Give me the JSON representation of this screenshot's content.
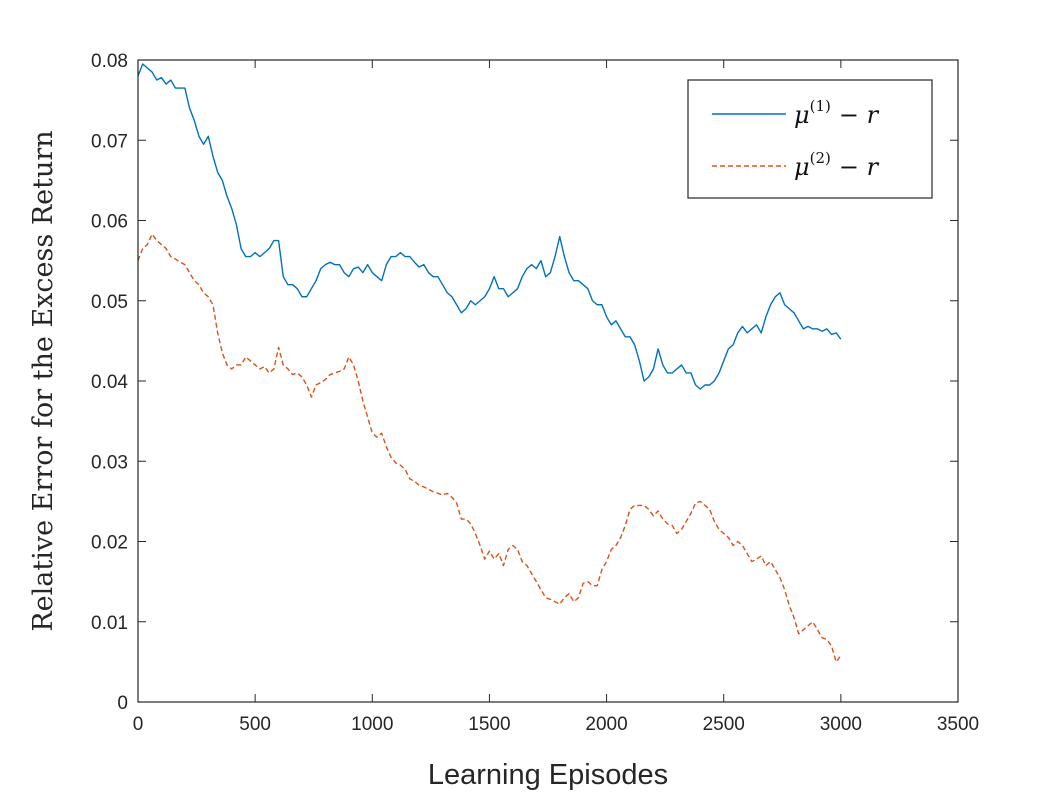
{
  "chart_data": {
    "type": "line",
    "title": "",
    "xlabel": "Learning Episodes",
    "ylabel": "Relative Error for the Excess Return",
    "xlim": [
      0,
      3500
    ],
    "ylim": [
      0,
      0.08
    ],
    "xticks": [
      0,
      500,
      1000,
      1500,
      2000,
      2500,
      3000,
      3500
    ],
    "yticks": [
      0,
      0.01,
      0.02,
      0.03,
      0.04,
      0.05,
      0.06,
      0.07,
      0.08
    ],
    "xtick_labels": [
      "0",
      "500",
      "1000",
      "1500",
      "2000",
      "2500",
      "3000",
      "3500"
    ],
    "ytick_labels": [
      "0",
      "0.01",
      "0.02",
      "0.03",
      "0.04",
      "0.05",
      "0.06",
      "0.07",
      "0.08"
    ],
    "grid": false,
    "legend_position": "top-right",
    "series": [
      {
        "name": "μ(1) − r",
        "legend": {
          "base": "μ",
          "sup": "(1)",
          "rest": "− r"
        },
        "color": "#0072BD",
        "style": "solid",
        "points": [
          [
            0,
            0.078
          ],
          [
            20,
            0.0795
          ],
          [
            40,
            0.079
          ],
          [
            60,
            0.0785
          ],
          [
            80,
            0.0775
          ],
          [
            100,
            0.0778
          ],
          [
            120,
            0.077
          ],
          [
            140,
            0.0775
          ],
          [
            160,
            0.0765
          ],
          [
            180,
            0.0765
          ],
          [
            200,
            0.0765
          ],
          [
            220,
            0.074
          ],
          [
            240,
            0.0725
          ],
          [
            260,
            0.0705
          ],
          [
            280,
            0.0695
          ],
          [
            300,
            0.0705
          ],
          [
            320,
            0.068
          ],
          [
            340,
            0.066
          ],
          [
            360,
            0.065
          ],
          [
            380,
            0.063
          ],
          [
            400,
            0.0615
          ],
          [
            420,
            0.0595
          ],
          [
            440,
            0.0565
          ],
          [
            460,
            0.0555
          ],
          [
            480,
            0.0555
          ],
          [
            500,
            0.056
          ],
          [
            520,
            0.0555
          ],
          [
            540,
            0.056
          ],
          [
            560,
            0.0565
          ],
          [
            580,
            0.0575
          ],
          [
            600,
            0.0575
          ],
          [
            620,
            0.053
          ],
          [
            640,
            0.052
          ],
          [
            660,
            0.052
          ],
          [
            680,
            0.0515
          ],
          [
            700,
            0.0505
          ],
          [
            720,
            0.0505
          ],
          [
            740,
            0.0515
          ],
          [
            760,
            0.0525
          ],
          [
            780,
            0.054
          ],
          [
            800,
            0.0545
          ],
          [
            820,
            0.0548
          ],
          [
            840,
            0.0545
          ],
          [
            860,
            0.0545
          ],
          [
            880,
            0.0535
          ],
          [
            900,
            0.053
          ],
          [
            920,
            0.054
          ],
          [
            940,
            0.0542
          ],
          [
            960,
            0.0535
          ],
          [
            980,
            0.0545
          ],
          [
            1000,
            0.0535
          ],
          [
            1020,
            0.053
          ],
          [
            1040,
            0.0525
          ],
          [
            1060,
            0.0545
          ],
          [
            1080,
            0.0555
          ],
          [
            1100,
            0.0555
          ],
          [
            1120,
            0.056
          ],
          [
            1140,
            0.0555
          ],
          [
            1160,
            0.0555
          ],
          [
            1180,
            0.0548
          ],
          [
            1200,
            0.0542
          ],
          [
            1220,
            0.0545
          ],
          [
            1240,
            0.0535
          ],
          [
            1260,
            0.053
          ],
          [
            1280,
            0.053
          ],
          [
            1300,
            0.052
          ],
          [
            1320,
            0.051
          ],
          [
            1340,
            0.0505
          ],
          [
            1360,
            0.0495
          ],
          [
            1380,
            0.0485
          ],
          [
            1400,
            0.049
          ],
          [
            1420,
            0.05
          ],
          [
            1440,
            0.0495
          ],
          [
            1460,
            0.05
          ],
          [
            1480,
            0.0505
          ],
          [
            1500,
            0.0515
          ],
          [
            1520,
            0.053
          ],
          [
            1540,
            0.0515
          ],
          [
            1560,
            0.0515
          ],
          [
            1580,
            0.0505
          ],
          [
            1600,
            0.051
          ],
          [
            1620,
            0.0515
          ],
          [
            1640,
            0.053
          ],
          [
            1660,
            0.054
          ],
          [
            1680,
            0.0545
          ],
          [
            1700,
            0.054
          ],
          [
            1720,
            0.055
          ],
          [
            1740,
            0.053
          ],
          [
            1760,
            0.0535
          ],
          [
            1780,
            0.0555
          ],
          [
            1800,
            0.058
          ],
          [
            1820,
            0.0555
          ],
          [
            1840,
            0.0535
          ],
          [
            1860,
            0.0525
          ],
          [
            1880,
            0.0525
          ],
          [
            1900,
            0.052
          ],
          [
            1920,
            0.0515
          ],
          [
            1940,
            0.05
          ],
          [
            1960,
            0.0495
          ],
          [
            1980,
            0.0495
          ],
          [
            2000,
            0.048
          ],
          [
            2020,
            0.047
          ],
          [
            2040,
            0.0475
          ],
          [
            2060,
            0.0465
          ],
          [
            2080,
            0.0455
          ],
          [
            2100,
            0.0455
          ],
          [
            2120,
            0.0445
          ],
          [
            2140,
            0.0425
          ],
          [
            2160,
            0.04
          ],
          [
            2180,
            0.0405
          ],
          [
            2200,
            0.0415
          ],
          [
            2220,
            0.044
          ],
          [
            2240,
            0.042
          ],
          [
            2260,
            0.041
          ],
          [
            2280,
            0.041
          ],
          [
            2300,
            0.0415
          ],
          [
            2320,
            0.042
          ],
          [
            2340,
            0.041
          ],
          [
            2360,
            0.041
          ],
          [
            2380,
            0.0395
          ],
          [
            2400,
            0.039
          ],
          [
            2420,
            0.0395
          ],
          [
            2440,
            0.0395
          ],
          [
            2460,
            0.04
          ],
          [
            2480,
            0.041
          ],
          [
            2500,
            0.0425
          ],
          [
            2520,
            0.044
          ],
          [
            2540,
            0.0445
          ],
          [
            2560,
            0.046
          ],
          [
            2580,
            0.0468
          ],
          [
            2600,
            0.046
          ],
          [
            2620,
            0.0465
          ],
          [
            2640,
            0.047
          ],
          [
            2660,
            0.046
          ],
          [
            2680,
            0.048
          ],
          [
            2700,
            0.0495
          ],
          [
            2720,
            0.0505
          ],
          [
            2740,
            0.051
          ],
          [
            2760,
            0.0495
          ],
          [
            2780,
            0.049
          ],
          [
            2800,
            0.0485
          ],
          [
            2820,
            0.0475
          ],
          [
            2840,
            0.0465
          ],
          [
            2860,
            0.0468
          ],
          [
            2880,
            0.0465
          ],
          [
            2900,
            0.0465
          ],
          [
            2920,
            0.0462
          ],
          [
            2940,
            0.0465
          ],
          [
            2960,
            0.0458
          ],
          [
            2980,
            0.046
          ],
          [
            3000,
            0.0452
          ]
        ]
      },
      {
        "name": "μ(2) − r",
        "legend": {
          "base": "μ",
          "sup": "(2)",
          "rest": "− r"
        },
        "color": "#D95319",
        "style": "dashed",
        "points": [
          [
            0,
            0.055
          ],
          [
            20,
            0.0565
          ],
          [
            40,
            0.057
          ],
          [
            60,
            0.0583
          ],
          [
            80,
            0.0575
          ],
          [
            100,
            0.057
          ],
          [
            120,
            0.0565
          ],
          [
            140,
            0.0555
          ],
          [
            160,
            0.0552
          ],
          [
            180,
            0.0548
          ],
          [
            200,
            0.0545
          ],
          [
            220,
            0.0535
          ],
          [
            240,
            0.0525
          ],
          [
            260,
            0.052
          ],
          [
            280,
            0.051
          ],
          [
            300,
            0.0505
          ],
          [
            320,
            0.0495
          ],
          [
            340,
            0.046
          ],
          [
            360,
            0.0435
          ],
          [
            380,
            0.042
          ],
          [
            400,
            0.0415
          ],
          [
            420,
            0.042
          ],
          [
            440,
            0.042
          ],
          [
            460,
            0.043
          ],
          [
            480,
            0.0425
          ],
          [
            500,
            0.042
          ],
          [
            520,
            0.0415
          ],
          [
            540,
            0.0418
          ],
          [
            560,
            0.041
          ],
          [
            580,
            0.0415
          ],
          [
            600,
            0.0442
          ],
          [
            620,
            0.042
          ],
          [
            640,
            0.0415
          ],
          [
            660,
            0.0408
          ],
          [
            680,
            0.041
          ],
          [
            700,
            0.0405
          ],
          [
            720,
            0.0395
          ],
          [
            740,
            0.038
          ],
          [
            760,
            0.0395
          ],
          [
            780,
            0.0398
          ],
          [
            800,
            0.0402
          ],
          [
            820,
            0.0408
          ],
          [
            840,
            0.041
          ],
          [
            860,
            0.0412
          ],
          [
            880,
            0.0415
          ],
          [
            900,
            0.043
          ],
          [
            920,
            0.042
          ],
          [
            940,
            0.04
          ],
          [
            960,
            0.0375
          ],
          [
            980,
            0.0355
          ],
          [
            1000,
            0.0335
          ],
          [
            1020,
            0.033
          ],
          [
            1040,
            0.0335
          ],
          [
            1060,
            0.0318
          ],
          [
            1080,
            0.0305
          ],
          [
            1100,
            0.0298
          ],
          [
            1120,
            0.0295
          ],
          [
            1140,
            0.029
          ],
          [
            1160,
            0.0278
          ],
          [
            1180,
            0.0275
          ],
          [
            1200,
            0.027
          ],
          [
            1220,
            0.0268
          ],
          [
            1240,
            0.0265
          ],
          [
            1260,
            0.0262
          ],
          [
            1280,
            0.026
          ],
          [
            1300,
            0.0258
          ],
          [
            1320,
            0.026
          ],
          [
            1340,
            0.0255
          ],
          [
            1360,
            0.0248
          ],
          [
            1380,
            0.0228
          ],
          [
            1400,
            0.0228
          ],
          [
            1420,
            0.0222
          ],
          [
            1440,
            0.021
          ],
          [
            1460,
            0.0195
          ],
          [
            1480,
            0.0178
          ],
          [
            1500,
            0.0188
          ],
          [
            1520,
            0.0178
          ],
          [
            1540,
            0.0185
          ],
          [
            1560,
            0.017
          ],
          [
            1580,
            0.019
          ],
          [
            1600,
            0.0195
          ],
          [
            1620,
            0.019
          ],
          [
            1640,
            0.0175
          ],
          [
            1660,
            0.017
          ],
          [
            1680,
            0.016
          ],
          [
            1700,
            0.015
          ],
          [
            1720,
            0.014
          ],
          [
            1740,
            0.013
          ],
          [
            1760,
            0.0128
          ],
          [
            1780,
            0.0125
          ],
          [
            1800,
            0.0122
          ],
          [
            1820,
            0.013
          ],
          [
            1840,
            0.0135
          ],
          [
            1860,
            0.0125
          ],
          [
            1880,
            0.013
          ],
          [
            1900,
            0.0148
          ],
          [
            1920,
            0.015
          ],
          [
            1940,
            0.0145
          ],
          [
            1960,
            0.0145
          ],
          [
            1980,
            0.0165
          ],
          [
            2000,
            0.0175
          ],
          [
            2020,
            0.019
          ],
          [
            2040,
            0.0195
          ],
          [
            2060,
            0.0205
          ],
          [
            2080,
            0.022
          ],
          [
            2100,
            0.024
          ],
          [
            2120,
            0.0245
          ],
          [
            2140,
            0.0245
          ],
          [
            2160,
            0.0245
          ],
          [
            2180,
            0.024
          ],
          [
            2200,
            0.0232
          ],
          [
            2220,
            0.0238
          ],
          [
            2240,
            0.0228
          ],
          [
            2260,
            0.0222
          ],
          [
            2280,
            0.022
          ],
          [
            2300,
            0.021
          ],
          [
            2320,
            0.0215
          ],
          [
            2340,
            0.0225
          ],
          [
            2360,
            0.0235
          ],
          [
            2380,
            0.0248
          ],
          [
            2400,
            0.025
          ],
          [
            2420,
            0.0245
          ],
          [
            2440,
            0.024
          ],
          [
            2460,
            0.0225
          ],
          [
            2480,
            0.0215
          ],
          [
            2500,
            0.021
          ],
          [
            2520,
            0.0205
          ],
          [
            2540,
            0.0195
          ],
          [
            2560,
            0.02
          ],
          [
            2580,
            0.0195
          ],
          [
            2600,
            0.0185
          ],
          [
            2620,
            0.0175
          ],
          [
            2640,
            0.0178
          ],
          [
            2660,
            0.0182
          ],
          [
            2680,
            0.017
          ],
          [
            2700,
            0.0175
          ],
          [
            2720,
            0.0165
          ],
          [
            2740,
            0.0155
          ],
          [
            2760,
            0.014
          ],
          [
            2780,
            0.012
          ],
          [
            2800,
            0.0105
          ],
          [
            2820,
            0.0085
          ],
          [
            2840,
            0.009
          ],
          [
            2860,
            0.0095
          ],
          [
            2880,
            0.01
          ],
          [
            2900,
            0.009
          ],
          [
            2920,
            0.008
          ],
          [
            2940,
            0.0078
          ],
          [
            2960,
            0.007
          ],
          [
            2980,
            0.005
          ],
          [
            3000,
            0.0058
          ]
        ]
      }
    ]
  }
}
